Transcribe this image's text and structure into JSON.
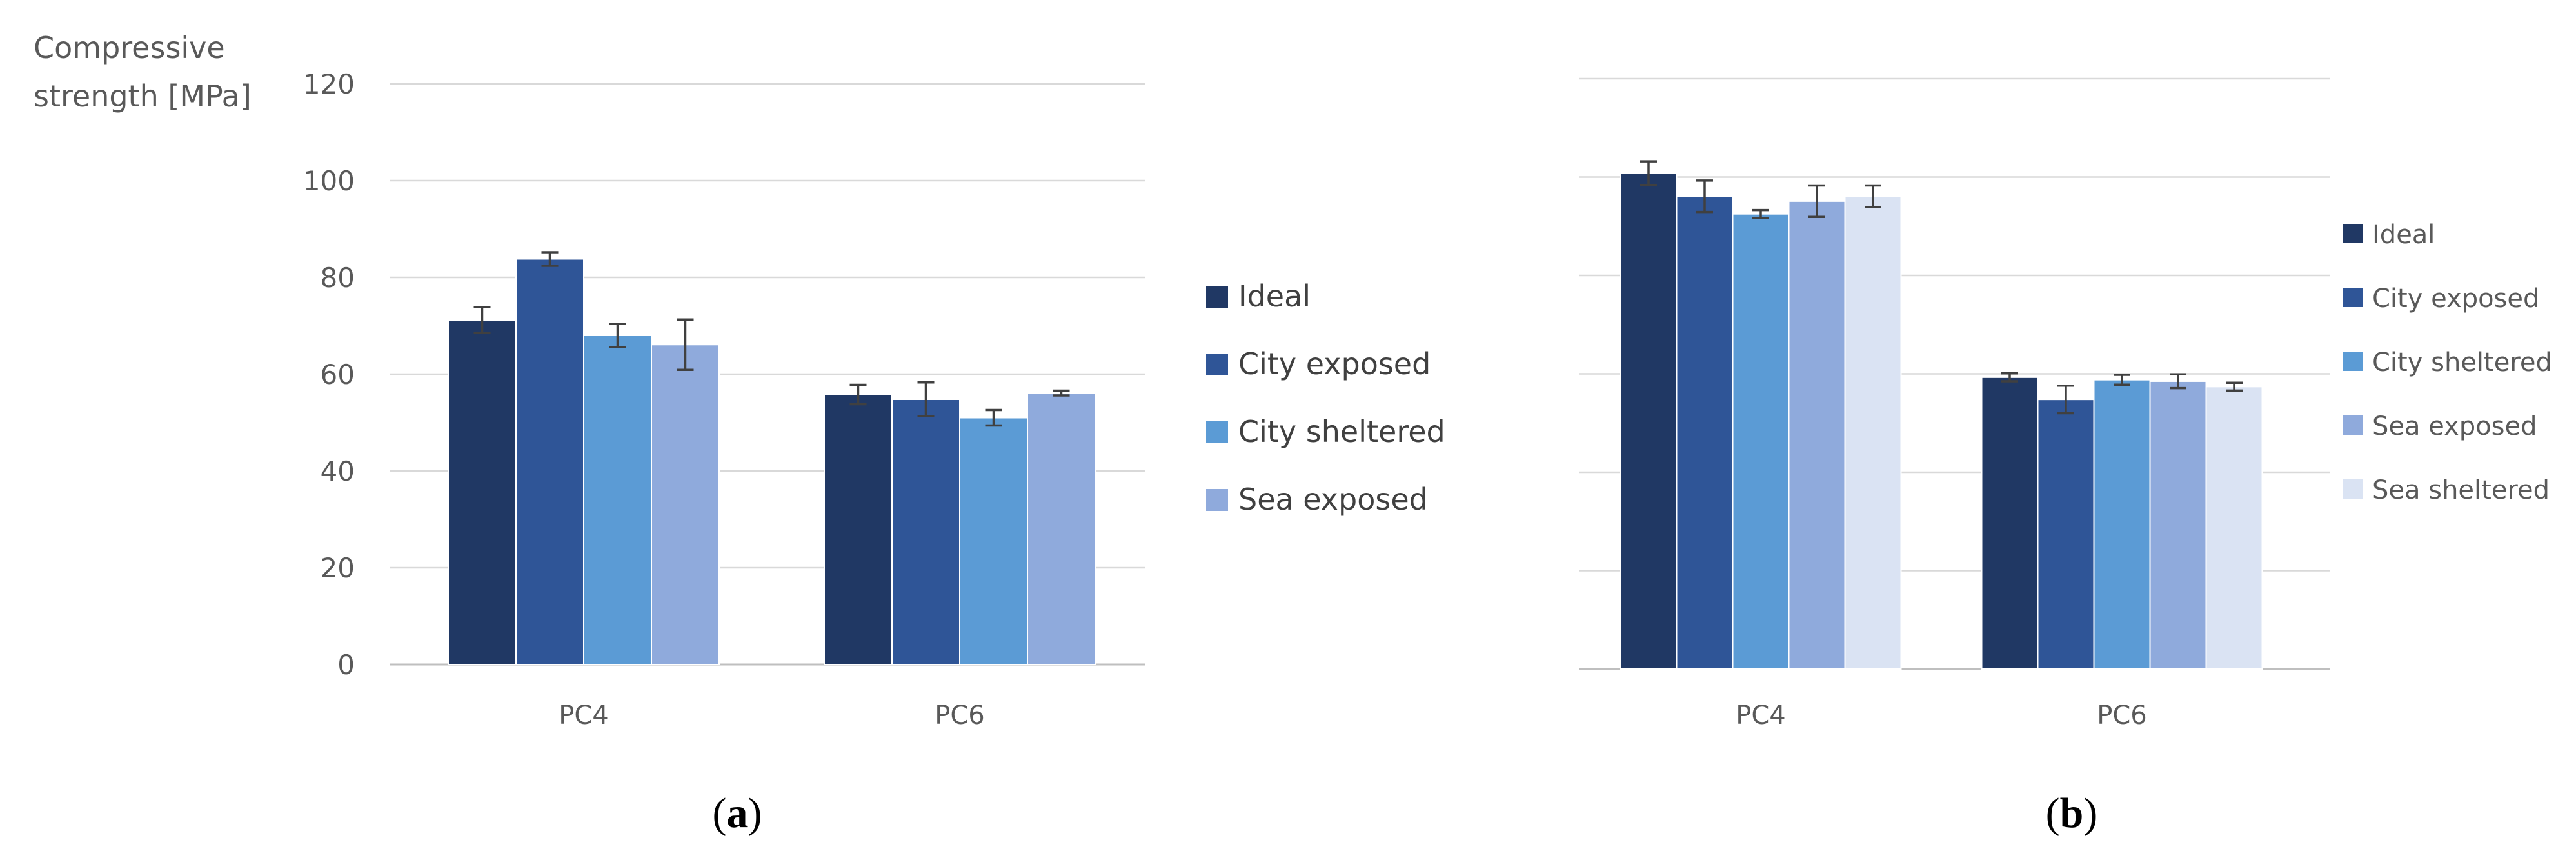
{
  "chart_data": [
    {
      "type": "bar",
      "panel_label": "a",
      "ylabel": [
        "Compressive",
        "strength [MPa]"
      ],
      "ylim": [
        0,
        120
      ],
      "yticks": [
        0,
        20,
        40,
        60,
        80,
        100,
        120
      ],
      "show_tick_labels": true,
      "categories": [
        "PC4",
        "PC6"
      ],
      "legend_position": "right",
      "gridlines": true,
      "series": [
        {
          "name": "Ideal",
          "color": "#203864",
          "values": [
            71.2,
            55.8
          ],
          "errors": [
            2.7,
            2.0
          ]
        },
        {
          "name": "City exposed",
          "color": "#2F5597",
          "values": [
            83.8,
            54.8
          ],
          "errors": [
            1.4,
            3.5
          ]
        },
        {
          "name": "City sheltered",
          "color": "#5B9BD5",
          "values": [
            68.0,
            51.0
          ],
          "errors": [
            2.4,
            1.6
          ]
        },
        {
          "name": "Sea exposed",
          "color": "#8FAADC",
          "values": [
            66.1,
            56.1
          ],
          "errors": [
            5.2,
            0.5
          ]
        }
      ]
    },
    {
      "type": "bar",
      "panel_label": "b",
      "ylabel": [],
      "ylim": [
        0,
        120
      ],
      "yticks": [
        0,
        20,
        40,
        60,
        80,
        100,
        120
      ],
      "show_tick_labels": false,
      "categories": [
        "PC4",
        "PC6"
      ],
      "legend_position": "right",
      "gridlines": true,
      "series": [
        {
          "name": "Ideal",
          "color": "#203864",
          "values": [
            100.8,
            59.3
          ],
          "errors": [
            2.4,
            0.8
          ]
        },
        {
          "name": "City exposed",
          "color": "#2F5597",
          "values": [
            96.1,
            54.8
          ],
          "errors": [
            3.2,
            2.8
          ]
        },
        {
          "name": "City sheltered",
          "color": "#5B9BD5",
          "values": [
            92.5,
            58.8
          ],
          "errors": [
            0.8,
            1.0
          ]
        },
        {
          "name": "Sea exposed",
          "color": "#8FAADC",
          "values": [
            95.1,
            58.5
          ],
          "errors": [
            3.2,
            1.4
          ]
        },
        {
          "name": "Sea sheltered",
          "color": "#DAE3F3",
          "values": [
            96.1,
            57.4
          ],
          "errors": [
            2.2,
            0.8
          ]
        }
      ]
    }
  ]
}
